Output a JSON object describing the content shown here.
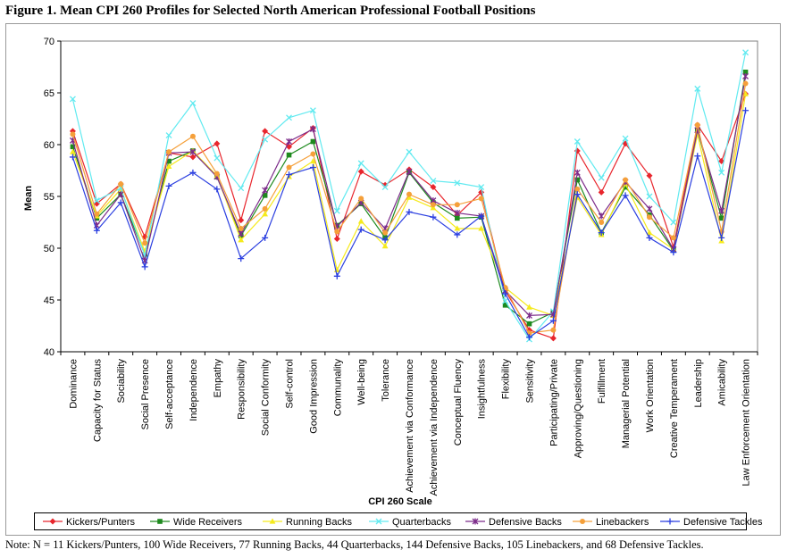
{
  "figure": {
    "title": "Figure 1. Mean CPI 260 Profiles for Selected North American Professional Football Positions",
    "note": "Note: N = 11 Kickers/Punters, 100 Wide Receivers, 77 Running Backs, 44 Quarterbacks, 144 Defensive Backs, 105 Linebackers, and 68 Defensive Tackles."
  },
  "chart_data": {
    "type": "line",
    "title": "",
    "xlabel": "CPI 260 Scale",
    "ylabel": "Mean",
    "ylim": [
      40,
      70
    ],
    "yticks": [
      40,
      45,
      50,
      55,
      60,
      65,
      70
    ],
    "grid": false,
    "legend_position": "bottom",
    "categories": [
      "Dominance",
      "Capacity for Status",
      "Sociability",
      "Social Presence",
      "Self-acceptance",
      "Independence",
      "Empathy",
      "Responsibility",
      "Social Conformity",
      "Self-control",
      "Good Impression",
      "Communality",
      "Well-being",
      "Tolerance",
      "Achievement via Conformance",
      "Achievement via Independence",
      "Conceptual Fluency",
      "Insightfulness",
      "Flexibility",
      "Sensitivity",
      "Participating/Private",
      "Approving/Questioning",
      "Fulfillment",
      "Managerial Potential",
      "Work Orientation",
      "Creative Temperament",
      "Leadership",
      "Amicability",
      "Law Enforcement Orientation"
    ],
    "series": [
      {
        "name": "Kickers/Punters",
        "color": "#e8262d",
        "marker": "diamond",
        "values": [
          61.3,
          54.3,
          56.2,
          51.1,
          59.2,
          58.8,
          60.1,
          52.7,
          61.3,
          59.8,
          61.6,
          50.9,
          57.4,
          56.1,
          57.6,
          55.9,
          53.2,
          55.4,
          45.9,
          42.1,
          41.3,
          59.4,
          55.4,
          60.1,
          57.0,
          50.1,
          61.9,
          58.4,
          64.9
        ]
      },
      {
        "name": "Wide Receivers",
        "color": "#1e8a1e",
        "marker": "square",
        "values": [
          59.8,
          52.9,
          55.2,
          49.4,
          58.4,
          59.4,
          56.9,
          51.2,
          55.1,
          59.0,
          60.3,
          52.2,
          54.3,
          51.0,
          57.3,
          54.4,
          52.9,
          53.0,
          44.5,
          42.7,
          43.8,
          56.6,
          51.5,
          55.9,
          53.2,
          49.8,
          61.4,
          52.9,
          67.0
        ]
      },
      {
        "name": "Running Backs",
        "color": "#f5ea1c",
        "marker": "triangle",
        "values": [
          59.3,
          53.1,
          55.7,
          49.7,
          57.9,
          59.4,
          57.0,
          50.8,
          53.3,
          56.9,
          58.4,
          47.9,
          52.6,
          50.2,
          54.9,
          53.9,
          51.9,
          51.9,
          46.2,
          44.3,
          43.5,
          54.9,
          51.3,
          56.2,
          51.5,
          49.9,
          61.0,
          50.7,
          64.9
        ]
      },
      {
        "name": "Quarterbacks",
        "color": "#61eaf0",
        "marker": "x",
        "values": [
          64.4,
          54.6,
          55.8,
          49.3,
          60.9,
          64.0,
          58.7,
          55.8,
          60.5,
          62.6,
          63.3,
          53.6,
          58.2,
          55.9,
          59.3,
          56.5,
          56.3,
          55.9,
          44.9,
          41.2,
          43.9,
          60.3,
          56.8,
          60.6,
          55.0,
          52.5,
          65.4,
          57.3,
          68.9
        ]
      },
      {
        "name": "Defensive Backs",
        "color": "#7c2b8a",
        "marker": "star",
        "values": [
          60.4,
          52.2,
          55.2,
          48.8,
          59.2,
          59.3,
          56.9,
          51.4,
          55.6,
          60.3,
          61.5,
          52.1,
          54.4,
          51.9,
          57.4,
          54.6,
          53.4,
          53.1,
          45.9,
          43.5,
          43.6,
          57.3,
          53.1,
          56.4,
          53.8,
          49.9,
          61.4,
          53.6,
          66.6
        ]
      },
      {
        "name": "Linebackers",
        "color": "#f5a03a",
        "marker": "circle",
        "values": [
          61.0,
          53.3,
          56.2,
          50.5,
          59.3,
          60.8,
          57.2,
          51.9,
          53.8,
          57.8,
          59.1,
          51.6,
          54.8,
          51.5,
          55.2,
          54.2,
          54.2,
          54.8,
          46.2,
          41.8,
          42.1,
          55.7,
          52.5,
          56.6,
          53.0,
          51.0,
          61.9,
          51.6,
          65.9
        ]
      },
      {
        "name": "Defensive Tackles",
        "color": "#2b3fe0",
        "marker": "plus",
        "values": [
          58.8,
          51.7,
          54.4,
          48.2,
          56.0,
          57.3,
          55.7,
          49.0,
          51.0,
          57.1,
          57.8,
          47.3,
          51.8,
          50.8,
          53.5,
          53.0,
          51.3,
          53.1,
          45.6,
          41.4,
          43.0,
          55.2,
          51.5,
          55.1,
          51.0,
          49.6,
          58.9,
          51.0,
          63.3
        ]
      }
    ]
  }
}
